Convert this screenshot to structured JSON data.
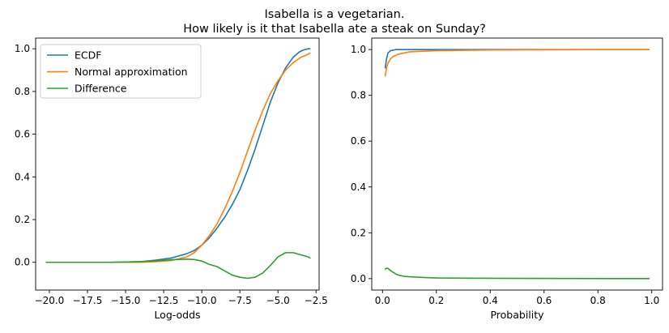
{
  "suptitle": {
    "line1": "Isabella is a vegetarian.",
    "line2": "How likely is it that Isabella ate a steak on Sunday?"
  },
  "colors": {
    "ecdf": "#1f77b4",
    "normal": "#ff7f0e",
    "difference": "#2ca02c"
  },
  "chart_data": [
    {
      "type": "line",
      "xlabel": "Log-odds",
      "ylabel": "",
      "xlim": [
        -20.9,
        -2.3
      ],
      "ylim": [
        -0.13,
        1.05
      ],
      "xticks": [
        -20.0,
        -17.5,
        -15.0,
        -12.5,
        -10.0,
        -7.5,
        -5.0,
        -2.5
      ],
      "xtick_labels": [
        "−20.0",
        "−17.5",
        "−15.0",
        "−12.5",
        "−10.0",
        "−7.5",
        "−5.0",
        "−2.5"
      ],
      "yticks": [
        0.0,
        0.2,
        0.4,
        0.6,
        0.8,
        1.0
      ],
      "ytick_labels": [
        "0.0",
        "0.2",
        "0.4",
        "0.6",
        "0.8",
        "1.0"
      ],
      "grid": false,
      "legend": "top-left",
      "series": [
        {
          "name": "ECDF",
          "x": [
            -20.2,
            -18,
            -16,
            -14,
            -13,
            -12,
            -11,
            -10.5,
            -10,
            -9.5,
            -9,
            -8.5,
            -8,
            -7.5,
            -7,
            -6.5,
            -6,
            -5.5,
            -5,
            -4.5,
            -4,
            -3.6,
            -3.3,
            -3.0,
            -2.9
          ],
          "y": [
            0.0,
            0.0,
            0.0,
            0.003,
            0.01,
            0.02,
            0.04,
            0.055,
            0.08,
            0.115,
            0.16,
            0.21,
            0.27,
            0.34,
            0.43,
            0.53,
            0.64,
            0.75,
            0.84,
            0.91,
            0.96,
            0.985,
            0.995,
            1.0,
            1.0
          ]
        },
        {
          "name": "Normal approximation",
          "x": [
            -20.2,
            -18,
            -16,
            -14,
            -13,
            -12,
            -11,
            -10.5,
            -10,
            -9.5,
            -9,
            -8.5,
            -8,
            -7.5,
            -7,
            -6.5,
            -6,
            -5.5,
            -5,
            -4.5,
            -4,
            -3.5,
            -3.0,
            -2.9
          ],
          "y": [
            0.0,
            0.0,
            0.0,
            0.0,
            0.003,
            0.008,
            0.025,
            0.045,
            0.08,
            0.125,
            0.18,
            0.25,
            0.33,
            0.42,
            0.52,
            0.62,
            0.71,
            0.79,
            0.85,
            0.9,
            0.935,
            0.96,
            0.975,
            0.98
          ]
        },
        {
          "name": "Difference",
          "x": [
            -20.2,
            -18,
            -16,
            -14,
            -13,
            -12,
            -11,
            -10.5,
            -10,
            -9.5,
            -9,
            -8.5,
            -8,
            -7.5,
            -7,
            -6.5,
            -6,
            -5.5,
            -5,
            -4.5,
            -4,
            -3.5,
            -3.0,
            -2.9
          ],
          "y": [
            0.0,
            0.0,
            0.0,
            0.003,
            0.007,
            0.012,
            0.015,
            0.013,
            0.006,
            -0.01,
            -0.02,
            -0.04,
            -0.06,
            -0.07,
            -0.075,
            -0.07,
            -0.05,
            -0.015,
            0.025,
            0.045,
            0.045,
            0.035,
            0.025,
            0.02
          ]
        }
      ]
    },
    {
      "type": "line",
      "xlabel": "Probability",
      "ylabel": "",
      "xlim": [
        -0.04,
        1.04
      ],
      "ylim": [
        -0.05,
        1.05
      ],
      "xticks": [
        0.0,
        0.2,
        0.4,
        0.6,
        0.8,
        1.0
      ],
      "xtick_labels": [
        "0.0",
        "0.2",
        "0.4",
        "0.6",
        "0.8",
        "1.0"
      ],
      "yticks": [
        0.0,
        0.2,
        0.4,
        0.6,
        0.8,
        1.0
      ],
      "ytick_labels": [
        "0.0",
        "0.2",
        "0.4",
        "0.6",
        "0.8",
        "1.0"
      ],
      "grid": false,
      "legend": "none",
      "series": [
        {
          "name": "ECDF",
          "x": [
            0.01,
            0.015,
            0.02,
            0.03,
            0.05,
            0.1,
            0.2,
            0.4,
            0.6,
            0.8,
            0.99
          ],
          "y": [
            0.92,
            0.96,
            0.985,
            0.995,
            1.0,
            1.0,
            1.0,
            1.0,
            1.0,
            1.0,
            1.0
          ]
        },
        {
          "name": "Normal approximation",
          "x": [
            0.01,
            0.015,
            0.02,
            0.03,
            0.04,
            0.06,
            0.1,
            0.2,
            0.4,
            0.6,
            0.8,
            0.99
          ],
          "y": [
            0.885,
            0.92,
            0.94,
            0.96,
            0.97,
            0.98,
            0.99,
            0.995,
            0.998,
            0.999,
            1.0,
            1.0
          ]
        },
        {
          "name": "Difference",
          "x": [
            0.01,
            0.015,
            0.02,
            0.03,
            0.04,
            0.05,
            0.06,
            0.08,
            0.1,
            0.15,
            0.2,
            0.3,
            0.5,
            0.99
          ],
          "y": [
            0.042,
            0.045,
            0.045,
            0.035,
            0.027,
            0.02,
            0.015,
            0.01,
            0.008,
            0.005,
            0.003,
            0.002,
            0.001,
            0.0
          ]
        }
      ]
    }
  ]
}
